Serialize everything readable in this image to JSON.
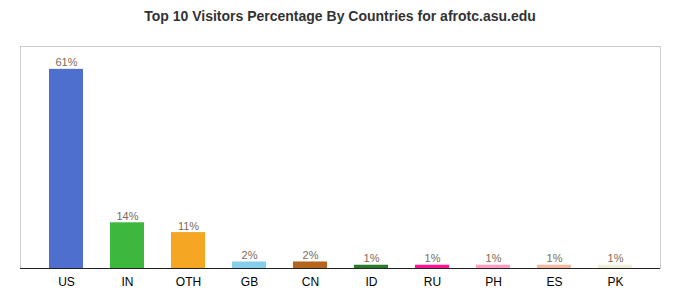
{
  "chart_data": {
    "type": "bar",
    "title": "Top 10 Visitors Percentage By Countries for afrotc.asu.edu",
    "categories": [
      "US",
      "IN",
      "OTH",
      "GB",
      "CN",
      "ID",
      "RU",
      "PH",
      "ES",
      "PK"
    ],
    "values": [
      61,
      14,
      11,
      2,
      2,
      1,
      1,
      1,
      1,
      1
    ],
    "value_labels": [
      "61%",
      "14%",
      "11%",
      "2%",
      "2%",
      "1%",
      "1%",
      "1%",
      "1%",
      "1%"
    ],
    "colors": [
      "#4f6fce",
      "#3db83d",
      "#f5a623",
      "#87ceeb",
      "#b5651d",
      "#2a7a2a",
      "#ff1493",
      "#ff9ebc",
      "#f4b8a0",
      "#f0eed8"
    ],
    "ylim": [
      0,
      68
    ],
    "tick_labels": "x",
    "data_labels": true,
    "grid": false
  }
}
